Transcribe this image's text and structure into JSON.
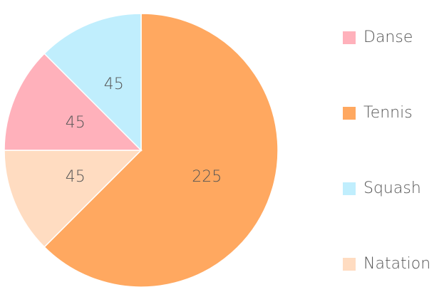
{
  "chart_data": {
    "type": "pie",
    "categories": [
      "Danse",
      "Tennis",
      "Squash",
      "Natation"
    ],
    "values": [
      45,
      225,
      45,
      45
    ],
    "colors": [
      "#ffb1bb",
      "#ffa860",
      "#c0eefd",
      "#ffdcc1"
    ],
    "legend": "right"
  }
}
